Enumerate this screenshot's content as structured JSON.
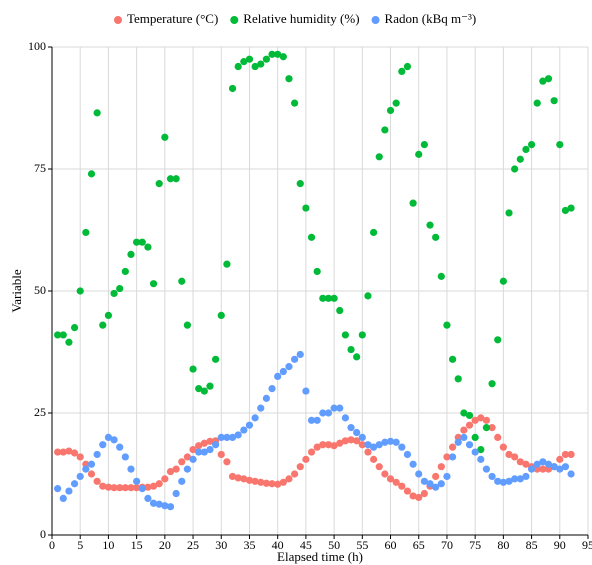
{
  "chart_data": {
    "type": "scatter",
    "x_label": "Elapsed time (h)",
    "y_label": "Variable",
    "xlim": [
      0,
      95
    ],
    "ylim": [
      0,
      100
    ],
    "xticks": [
      0,
      5,
      10,
      15,
      20,
      25,
      30,
      35,
      40,
      45,
      50,
      55,
      60,
      65,
      70,
      75,
      80,
      85,
      90,
      95
    ],
    "yticks": [
      0,
      25,
      50,
      75,
      100
    ],
    "grid": true,
    "legend": "top",
    "x": [
      1,
      2,
      3,
      4,
      5,
      6,
      7,
      8,
      9,
      10,
      11,
      12,
      13,
      14,
      15,
      16,
      17,
      18,
      19,
      20,
      21,
      22,
      23,
      24,
      25,
      26,
      27,
      28,
      29,
      30,
      31,
      32,
      33,
      34,
      35,
      36,
      37,
      38,
      39,
      40,
      41,
      42,
      43,
      44,
      45,
      46,
      47,
      48,
      49,
      50,
      51,
      52,
      53,
      54,
      55,
      56,
      57,
      58,
      59,
      60,
      61,
      62,
      63,
      64,
      65,
      66,
      67,
      68,
      69,
      70,
      71,
      72,
      73,
      74,
      75,
      76,
      77,
      78,
      79,
      80,
      81,
      82,
      83,
      84,
      85,
      86,
      87,
      88,
      89,
      90,
      91,
      92
    ],
    "series": [
      {
        "name": "Temperature (°C)",
        "color": "#F8766D",
        "values": [
          17,
          17,
          17.2,
          16.8,
          16,
          14.5,
          12.5,
          11,
          10,
          9.8,
          9.7,
          9.7,
          9.7,
          9.7,
          9.7,
          9.8,
          9.8,
          10,
          10.5,
          11.5,
          13,
          13.5,
          15,
          16,
          17.5,
          18.3,
          18.8,
          19.2,
          19.3,
          16.5,
          15,
          12,
          11.7,
          11.5,
          11.2,
          11,
          10.8,
          10.6,
          10.5,
          10.4,
          10.8,
          11.5,
          12.5,
          14,
          15.5,
          17,
          18,
          18.5,
          18.5,
          18.3,
          18.8,
          19.3,
          19.5,
          19.3,
          18.5,
          17,
          15.5,
          14,
          12.5,
          11.5,
          10.8,
          10,
          9,
          8,
          7.7,
          8.5,
          10,
          12,
          14,
          16,
          18,
          20,
          21.5,
          22.5,
          23.5,
          24,
          23.5,
          22,
          20,
          18,
          16.5,
          16,
          15,
          14.5,
          14,
          13.5,
          13.5,
          13.5,
          14,
          15.5,
          16.5,
          16.5
        ]
      },
      {
        "name": "Relative humidity (%)",
        "color": "#00BA38",
        "values": [
          41,
          41,
          39.5,
          42.5,
          50,
          62,
          74,
          86.5,
          43,
          45,
          49.5,
          50.5,
          54,
          57.5,
          60,
          60,
          59,
          51.5,
          72,
          81.5,
          73,
          73,
          52,
          43,
          34,
          30,
          29.5,
          30.5,
          36,
          45,
          55.5,
          91.5,
          96,
          97,
          97.5,
          96,
          96.5,
          97.5,
          98.5,
          98.5,
          98,
          93.5,
          88.5,
          72,
          67,
          61,
          54,
          48.5,
          48.5,
          48.5,
          46,
          41,
          38,
          36.5,
          41,
          49,
          62,
          77.5,
          83,
          87,
          88.5,
          95,
          96,
          68,
          78,
          80,
          63.5,
          61,
          53,
          43,
          36,
          32,
          25,
          24.5,
          20,
          17.5,
          22,
          31,
          40,
          52,
          66,
          75,
          77,
          79,
          80,
          88.5,
          93,
          93.5,
          89,
          80,
          66.5,
          67
        ]
      },
      {
        "name": "Radon (kBq m⁻³)",
        "color": "#619CFF",
        "values": [
          9.5,
          7.5,
          9,
          10.5,
          12,
          13.5,
          14.5,
          16.5,
          18.5,
          20,
          19.5,
          18,
          16,
          13.5,
          11,
          9.5,
          7.5,
          6.5,
          6.3,
          6,
          5.8,
          8.5,
          11,
          13.5,
          15.5,
          17,
          17,
          17.5,
          18.5,
          20,
          20,
          20,
          20.5,
          21.5,
          22.5,
          24,
          26,
          28,
          30,
          32.5,
          33.5,
          34.5,
          36,
          37,
          29.5,
          23.5,
          23.5,
          25,
          25,
          26,
          26,
          24,
          22,
          21,
          20,
          18.5,
          18,
          18.5,
          19,
          19.2,
          19,
          18,
          16.5,
          14.5,
          12.5,
          11,
          10.5,
          9.8,
          10.5,
          12,
          16,
          19,
          20,
          18.5,
          17,
          15.5,
          13.5,
          12,
          11,
          10.8,
          11,
          11.5,
          11.5,
          12,
          13.5,
          14.5,
          15,
          14.5,
          14,
          13.5,
          14,
          12.5
        ]
      }
    ]
  }
}
